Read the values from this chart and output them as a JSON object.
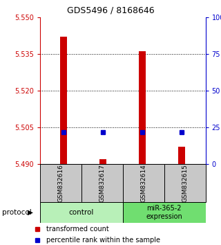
{
  "title": "GDS5496 / 8168646",
  "samples": [
    "GSM832616",
    "GSM832617",
    "GSM832614",
    "GSM832615"
  ],
  "red_values": [
    5.542,
    5.492,
    5.536,
    5.497
  ],
  "blue_values": [
    5.503,
    5.503,
    5.503,
    5.503
  ],
  "ylim_left": [
    5.49,
    5.55
  ],
  "yticks_left": [
    5.49,
    5.505,
    5.52,
    5.535,
    5.55
  ],
  "ylim_right": [
    0,
    100
  ],
  "yticks_right": [
    0,
    25,
    50,
    75,
    100
  ],
  "ytick_right_labels": [
    "0",
    "25",
    "50",
    "75",
    "100%"
  ],
  "protocol_groups": [
    {
      "label": "control",
      "color": "#b8f0b8"
    },
    {
      "label": "miR-365-2\nexpression",
      "color": "#70de70"
    }
  ],
  "legend_red_label": "transformed count",
  "legend_blue_label": "percentile rank within the sample",
  "bar_color": "#cc0000",
  "blue_color": "#0000cc",
  "left_axis_color": "#cc0000",
  "right_axis_color": "#0000cc",
  "sample_panel_color": "#c8c8c8",
  "protocol_label": "protocol",
  "base_value": 5.49
}
